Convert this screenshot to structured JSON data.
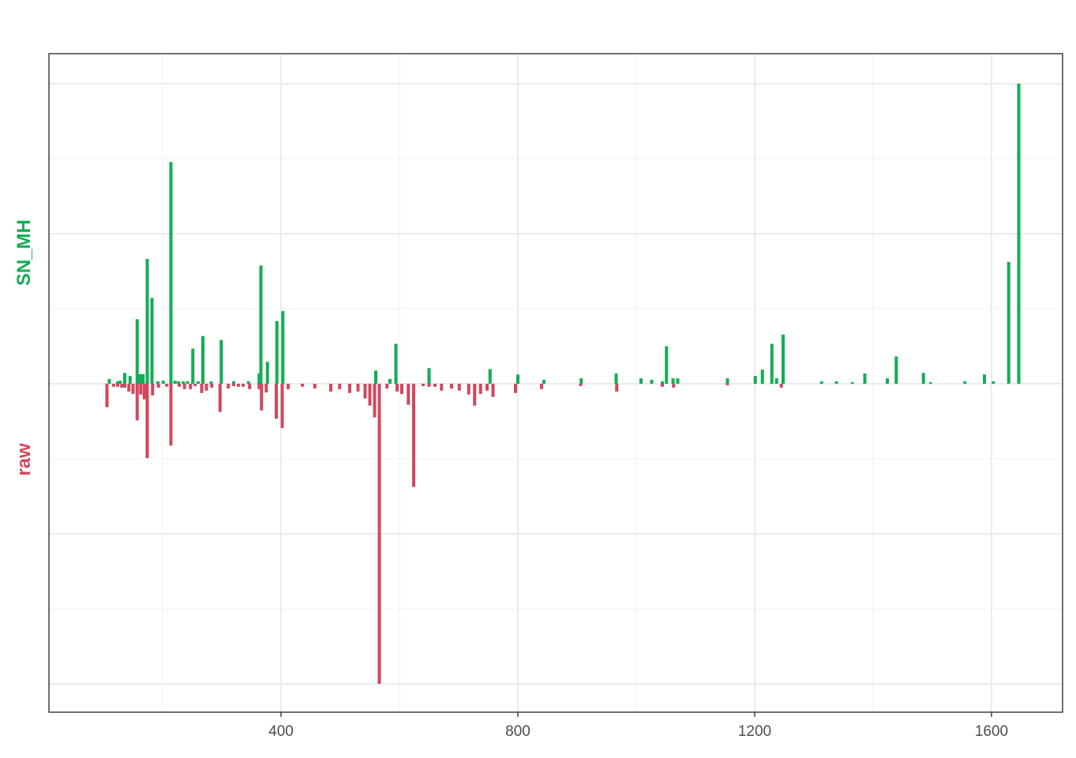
{
  "chart_data": {
    "type": "bar",
    "layout": "mirrored",
    "x_ticks": [
      400,
      800,
      1200,
      1600
    ],
    "xlim": [
      80,
      1730
    ],
    "ylim": [
      -1.0,
      1.0
    ],
    "grid": true,
    "colors": {
      "top": "#12ad54",
      "bottom": "#d1485e"
    },
    "labels": {
      "top": "SN_MH",
      "bottom": "raw"
    },
    "series": [
      {
        "name": "SN_MH",
        "points": [
          [
            110,
            0.016
          ],
          [
            124,
            0.008
          ],
          [
            128,
            0.01
          ],
          [
            136,
            0.036
          ],
          [
            145,
            0.026
          ],
          [
            157,
            0.215
          ],
          [
            162,
            0.032
          ],
          [
            167,
            0.032
          ],
          [
            174,
            0.416
          ],
          [
            182,
            0.286
          ],
          [
            192,
            0.008
          ],
          [
            201,
            0.01
          ],
          [
            214,
            0.739
          ],
          [
            221,
            0.01
          ],
          [
            227,
            0.008
          ],
          [
            235,
            0.008
          ],
          [
            242,
            0.008
          ],
          [
            251,
            0.117
          ],
          [
            260,
            0.008
          ],
          [
            268,
            0.159
          ],
          [
            282,
            0.008
          ],
          [
            299,
            0.146
          ],
          [
            320,
            0.008
          ],
          [
            345,
            0.008
          ],
          [
            363,
            0.034
          ],
          [
            366,
            0.394
          ],
          [
            377,
            0.073
          ],
          [
            393,
            0.209
          ],
          [
            403,
            0.242
          ],
          [
            560,
            0.044
          ],
          [
            584,
            0.016
          ],
          [
            594,
            0.133
          ],
          [
            650,
            0.052
          ],
          [
            753,
            0.049
          ],
          [
            800,
            0.031
          ],
          [
            844,
            0.013
          ],
          [
            907,
            0.018
          ],
          [
            966,
            0.034
          ],
          [
            1008,
            0.018
          ],
          [
            1026,
            0.013
          ],
          [
            1044,
            0.008
          ],
          [
            1051,
            0.125
          ],
          [
            1062,
            0.018
          ],
          [
            1070,
            0.018
          ],
          [
            1154,
            0.018
          ],
          [
            1201,
            0.026
          ],
          [
            1213,
            0.047
          ],
          [
            1229,
            0.133
          ],
          [
            1237,
            0.018
          ],
          [
            1248,
            0.164
          ],
          [
            1313,
            0.008
          ],
          [
            1338,
            0.008
          ],
          [
            1365,
            0.005
          ],
          [
            1386,
            0.034
          ],
          [
            1424,
            0.018
          ],
          [
            1439,
            0.091
          ],
          [
            1485,
            0.036
          ],
          [
            1497,
            0.005
          ],
          [
            1555,
            0.008
          ],
          [
            1588,
            0.031
          ],
          [
            1603,
            0.008
          ],
          [
            1629,
            0.406
          ],
          [
            1646,
            1.0
          ]
        ]
      },
      {
        "name": "raw",
        "points": [
          [
            106,
            0.078
          ],
          [
            117,
            0.01
          ],
          [
            124,
            0.01
          ],
          [
            131,
            0.013
          ],
          [
            136,
            0.013
          ],
          [
            143,
            0.026
          ],
          [
            150,
            0.034
          ],
          [
            157,
            0.122
          ],
          [
            163,
            0.036
          ],
          [
            169,
            0.052
          ],
          [
            174,
            0.248
          ],
          [
            183,
            0.039
          ],
          [
            193,
            0.013
          ],
          [
            207,
            0.01
          ],
          [
            214,
            0.206
          ],
          [
            228,
            0.01
          ],
          [
            237,
            0.018
          ],
          [
            247,
            0.018
          ],
          [
            255,
            0.008
          ],
          [
            266,
            0.031
          ],
          [
            274,
            0.023
          ],
          [
            283,
            0.013
          ],
          [
            297,
            0.094
          ],
          [
            311,
            0.016
          ],
          [
            320,
            0.008
          ],
          [
            328,
            0.01
          ],
          [
            336,
            0.01
          ],
          [
            347,
            0.018
          ],
          [
            363,
            0.018
          ],
          [
            367,
            0.089
          ],
          [
            375,
            0.029
          ],
          [
            392,
            0.117
          ],
          [
            402,
            0.148
          ],
          [
            412,
            0.018
          ],
          [
            436,
            0.01
          ],
          [
            457,
            0.016
          ],
          [
            484,
            0.026
          ],
          [
            499,
            0.018
          ],
          [
            516,
            0.031
          ],
          [
            530,
            0.026
          ],
          [
            542,
            0.049
          ],
          [
            550,
            0.073
          ],
          [
            558,
            0.112
          ],
          [
            566,
            1.0
          ],
          [
            579,
            0.016
          ],
          [
            596,
            0.026
          ],
          [
            604,
            0.034
          ],
          [
            615,
            0.07
          ],
          [
            624,
            0.344
          ],
          [
            640,
            0.008
          ],
          [
            650,
            0.01
          ],
          [
            660,
            0.01
          ],
          [
            671,
            0.023
          ],
          [
            688,
            0.016
          ],
          [
            701,
            0.023
          ],
          [
            717,
            0.036
          ],
          [
            727,
            0.073
          ],
          [
            737,
            0.034
          ],
          [
            748,
            0.023
          ],
          [
            758,
            0.044
          ],
          [
            796,
            0.031
          ],
          [
            840,
            0.018
          ],
          [
            906,
            0.008
          ],
          [
            967,
            0.026
          ],
          [
            1044,
            0.01
          ],
          [
            1063,
            0.013
          ],
          [
            1154,
            0.005
          ],
          [
            1245,
            0.013
          ]
        ]
      }
    ]
  }
}
